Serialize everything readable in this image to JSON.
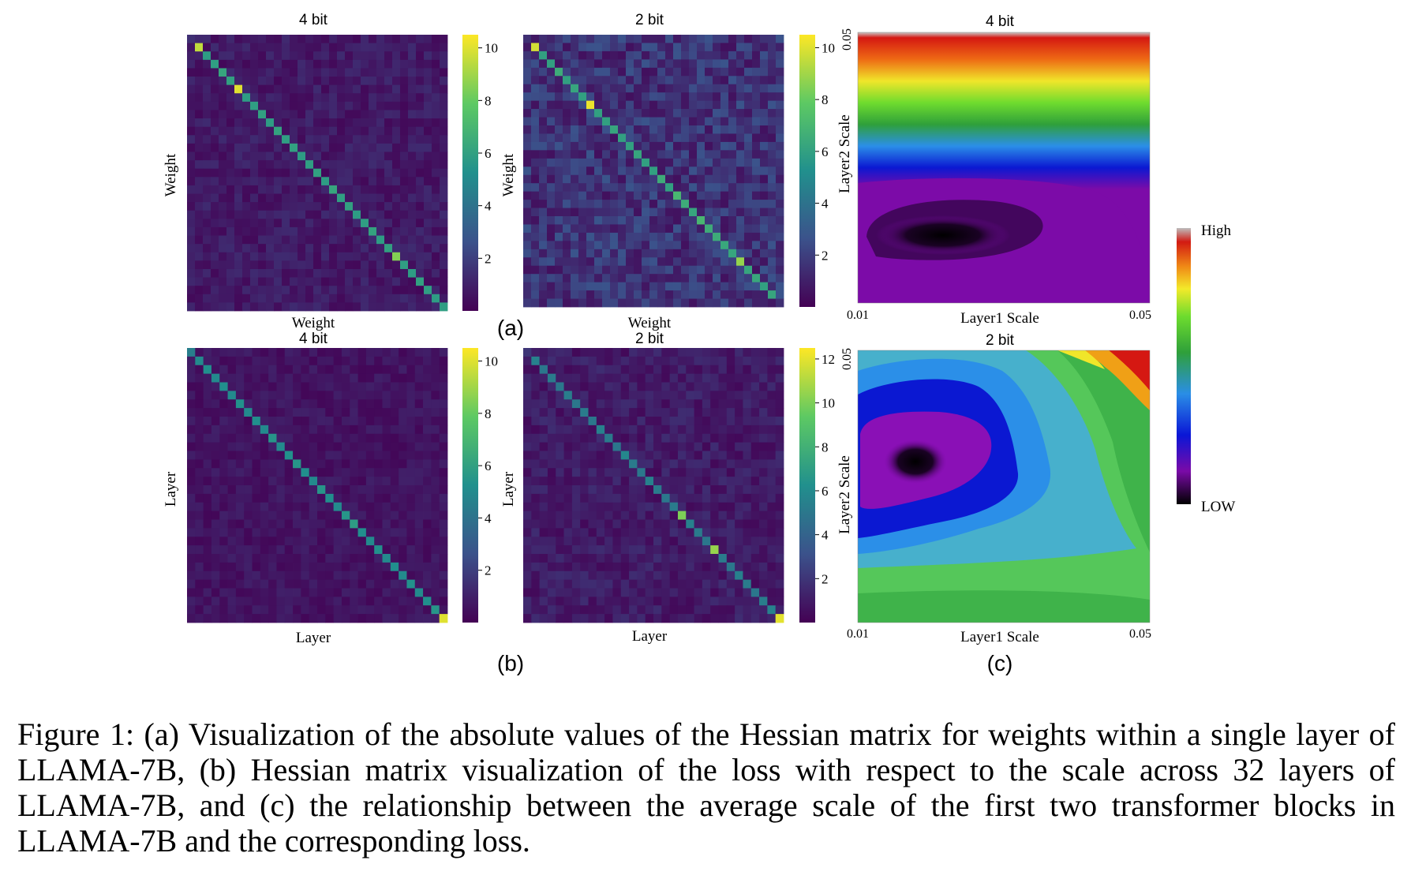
{
  "chart_data": [
    {
      "type": "heatmap",
      "title": "4 bit",
      "xlabel": "Weight",
      "ylabel": "Weight",
      "grid_size": 33,
      "diagonal_values": [
        1.5,
        9.5,
        5.8,
        5.9,
        6.2,
        6.0,
        10.0,
        5.8,
        5.9,
        6.0,
        5.8,
        6.1,
        5.9,
        6.0,
        5.8,
        5.9,
        6.0,
        5.8,
        6.2,
        5.9,
        6.0,
        5.8,
        5.9,
        6.1,
        5.8,
        6.0,
        8.5,
        5.9,
        5.8,
        6.0,
        5.9,
        5.8,
        5.9
      ],
      "off_diagonal_typical": 0.8,
      "colorbar": {
        "min": 0,
        "max": 10.5,
        "ticks": [
          "2",
          "4",
          "6",
          "8",
          "10"
        ]
      }
    },
    {
      "type": "heatmap",
      "title": "2 bit",
      "xlabel": "Weight",
      "ylabel": "Weight",
      "grid_size": 33,
      "diagonal_values": [
        1.5,
        9.8,
        6.0,
        6.0,
        6.5,
        6.0,
        6.2,
        6.0,
        10.2,
        6.0,
        6.0,
        6.2,
        6.0,
        6.0,
        6.2,
        6.0,
        6.0,
        6.5,
        6.0,
        7.0,
        6.5,
        6.2,
        7.0,
        6.5,
        6.5,
        6.3,
        6.2,
        8.8,
        6.2,
        6.3,
        6.0,
        6.2,
        1.5
      ],
      "off_diagonal_typical": 1.6,
      "colorbar": {
        "min": 0,
        "max": 10.5,
        "ticks": [
          "2",
          "4",
          "6",
          "8",
          "10"
        ]
      }
    },
    {
      "type": "heatmap",
      "title": "4 bit",
      "xlabel": "Layer",
      "ylabel": "Layer",
      "grid_size": 32,
      "diagonal_values": [
        4.5,
        5.0,
        5.2,
        5.0,
        5.2,
        5.0,
        5.3,
        5.0,
        5.2,
        5.0,
        5.5,
        5.0,
        5.3,
        5.5,
        5.2,
        5.0,
        5.5,
        5.2,
        5.0,
        5.5,
        5.8,
        5.2,
        5.0,
        5.3,
        5.0,
        5.2,
        5.0,
        5.3,
        5.0,
        5.2,
        5.5,
        10.0
      ],
      "off_diagonal_typical": 0.6,
      "colorbar": {
        "min": 0,
        "max": 10.5,
        "ticks": [
          "2",
          "4",
          "6",
          "8",
          "10"
        ]
      }
    },
    {
      "type": "heatmap",
      "title": "2 bit",
      "xlabel": "Layer",
      "ylabel": "Layer",
      "grid_size": 32,
      "diagonal_values": [
        2.0,
        5.5,
        5.0,
        5.2,
        5.0,
        5.3,
        5.0,
        5.2,
        5.0,
        5.5,
        5.2,
        5.0,
        5.8,
        5.2,
        5.0,
        5.5,
        5.2,
        5.0,
        5.2,
        10.0,
        5.5,
        5.2,
        5.0,
        10.5,
        5.2,
        5.0,
        5.5,
        5.2,
        5.0,
        5.3,
        5.5,
        12.0
      ],
      "off_diagonal_typical": 1.0,
      "colorbar": {
        "min": 0,
        "max": 12.5,
        "ticks": [
          "2",
          "4",
          "6",
          "8",
          "10",
          "12"
        ]
      }
    },
    {
      "type": "heatmap",
      "title": "4 bit",
      "xlabel": "Layer1 Scale",
      "ylabel": "Layer2 Scale",
      "x_ticks": [
        "0.01",
        "0.05"
      ],
      "y_ticks": [
        "0.05"
      ],
      "description_of_surface": "loss is highest at large Layer2 Scale (top) and decreases toward the bottom; minimum near Layer1 Scale ~0.02 in lower part"
    },
    {
      "type": "heatmap",
      "title": "2 bit",
      "xlabel": "Layer1 Scale",
      "ylabel": "Layer2 Scale",
      "x_ticks": [
        "0.01",
        "0.05"
      ],
      "y_ticks": [
        "0.05"
      ],
      "description_of_surface": "loss minimum basin at upper-left region, increasing outward; highest at top-right corner"
    }
  ],
  "labels": {
    "panel_a": "(a)",
    "panel_b": "(b)",
    "panel_c": "(c)",
    "legend_high": "High",
    "legend_low": "LOW"
  },
  "caption": "Figure 1: (a) Visualization of the absolute values of the Hessian matrix for weights within a single layer of LLAMA-7B, (b) Hessian matrix visualization of the loss with respect to the scale across 32 layers of LLAMA-7B, and (c) the relationship between the average scale of the first two transformer blocks in LLAMA-7B and the corresponding loss."
}
